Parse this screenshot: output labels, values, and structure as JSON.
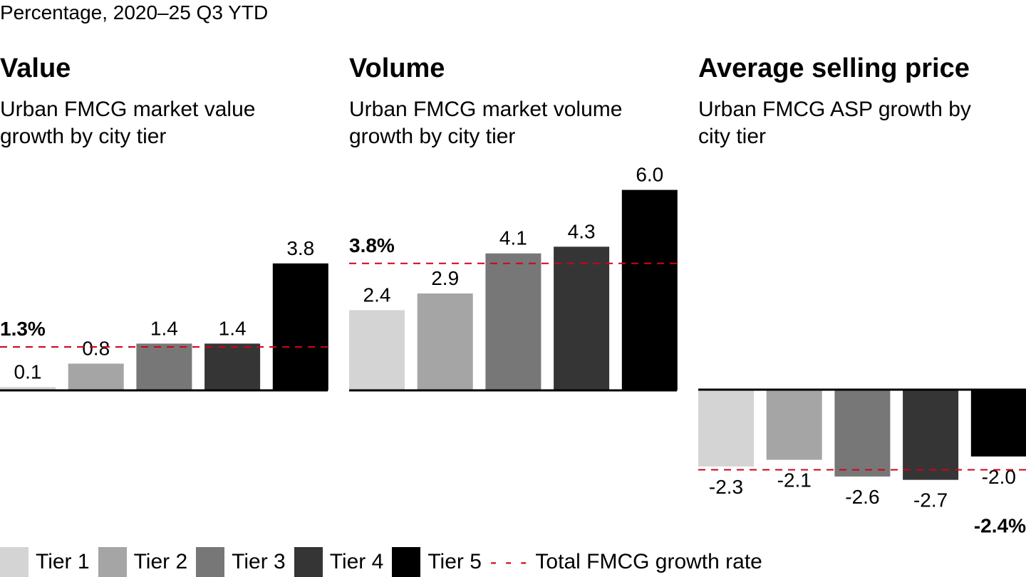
{
  "units_label": "Percentage, 2020–25 Q3 YTD",
  "legend": {
    "tiers": [
      {
        "label": "Tier 1",
        "color": "#d4d4d4"
      },
      {
        "label": "Tier 2",
        "color": "#a5a5a5"
      },
      {
        "label": "Tier 3",
        "color": "#777777"
      },
      {
        "label": "Tier 4",
        "color": "#353535"
      },
      {
        "label": "Tier 5",
        "color": "#000000"
      }
    ],
    "total_symbol": "- - -",
    "total_label": "Total FMCG growth rate",
    "total_color": "#d0021b"
  },
  "chart_data": [
    {
      "type": "bar",
      "title": "Value",
      "subtitle": "Urban FMCG market value growth by city tier",
      "categories": [
        "Tier 1",
        "Tier 2",
        "Tier 3",
        "Tier 4",
        "Tier 5"
      ],
      "values": [
        0.1,
        0.8,
        1.4,
        1.4,
        3.8
      ],
      "value_labels": [
        "0.1",
        "0.8",
        "1.4",
        "1.4",
        "3.8"
      ],
      "reference_line": {
        "name": "Total FMCG growth rate",
        "value": 1.3,
        "label": "1.3%"
      },
      "xlabel": "",
      "ylabel": "",
      "grid": false
    },
    {
      "type": "bar",
      "title": "Volume",
      "subtitle": "Urban FMCG market volume growth by city tier",
      "categories": [
        "Tier 1",
        "Tier 2",
        "Tier 3",
        "Tier 4",
        "Tier 5"
      ],
      "values": [
        2.4,
        2.9,
        4.1,
        4.3,
        6.0
      ],
      "value_labels": [
        "2.4",
        "2.9",
        "4.1",
        "4.3",
        "6.0"
      ],
      "reference_line": {
        "name": "Total FMCG growth rate",
        "value": 3.8,
        "label": "3.8%"
      },
      "xlabel": "",
      "ylabel": "",
      "grid": false
    },
    {
      "type": "bar",
      "title": "Average selling price",
      "subtitle": "Urban FMCG ASP growth by city tier",
      "categories": [
        "Tier 1",
        "Tier 2",
        "Tier 3",
        "Tier 4",
        "Tier 5"
      ],
      "values": [
        -2.3,
        -2.1,
        -2.6,
        -2.7,
        -2.0
      ],
      "value_labels": [
        "-2.3",
        "-2.1",
        "-2.6",
        "-2.7",
        "-2.0"
      ],
      "reference_line": {
        "name": "Total FMCG growth rate",
        "value": -2.4,
        "label": "-2.4%"
      },
      "xlabel": "",
      "ylabel": "",
      "grid": false
    }
  ]
}
